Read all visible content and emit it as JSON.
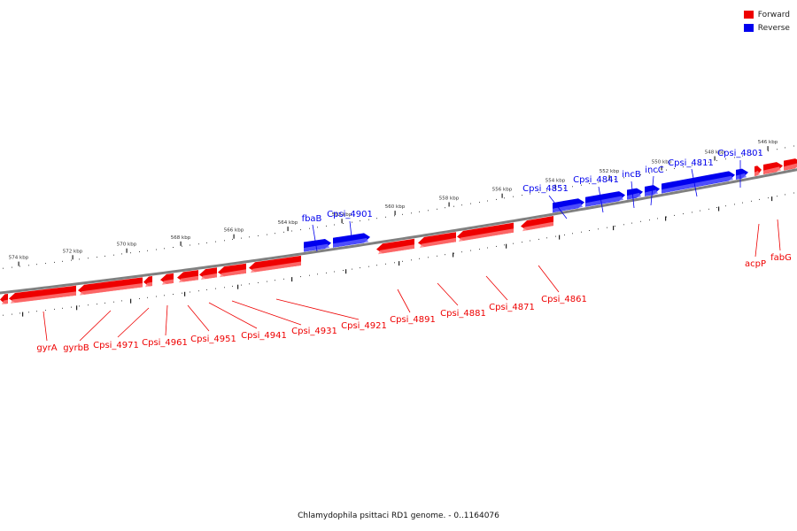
{
  "legend": {
    "items": [
      {
        "label": "Forward",
        "color": "#ee0000"
      },
      {
        "label": "Reverse",
        "color": "#0000ee"
      }
    ]
  },
  "caption": "Chlamydophila psittaci RD1 genome. - 0..1164076",
  "colors": {
    "forward": "#ee0000",
    "forward_light": "#ff8080",
    "reverse": "#0000ee",
    "reverse_light": "#6060ff",
    "backbone": "#808080"
  },
  "ticks": [
    "574 kbp",
    "572 kbp",
    "570 kbp",
    "568 kbp",
    "566 kbp",
    "564 kbp",
    "562 kbp",
    "560 kbp",
    "558 kbp",
    "556 kbp",
    "554 kbp",
    "552 kbp",
    "550 kbp",
    "548 kbp",
    "546 kbp"
  ],
  "reverse_genes": [
    "fbaB",
    "Cpsi_4901",
    "Cpsi_4851",
    "Cpsi_4841",
    "incB",
    "incC",
    "Cpsi_4811",
    "Cpsi_4801"
  ],
  "forward_genes_top": [
    "acpP",
    "fabG"
  ],
  "forward_genes_bottom": [
    "gyrA",
    "gyrbB",
    "Cpsi_4971",
    "Cpsi_4961",
    "Cpsi_4951",
    "Cpsi_4941",
    "Cpsi_4931",
    "Cpsi_4921",
    "Cpsi_4891",
    "Cpsi_4881",
    "Cpsi_4871",
    "Cpsi_4861"
  ]
}
